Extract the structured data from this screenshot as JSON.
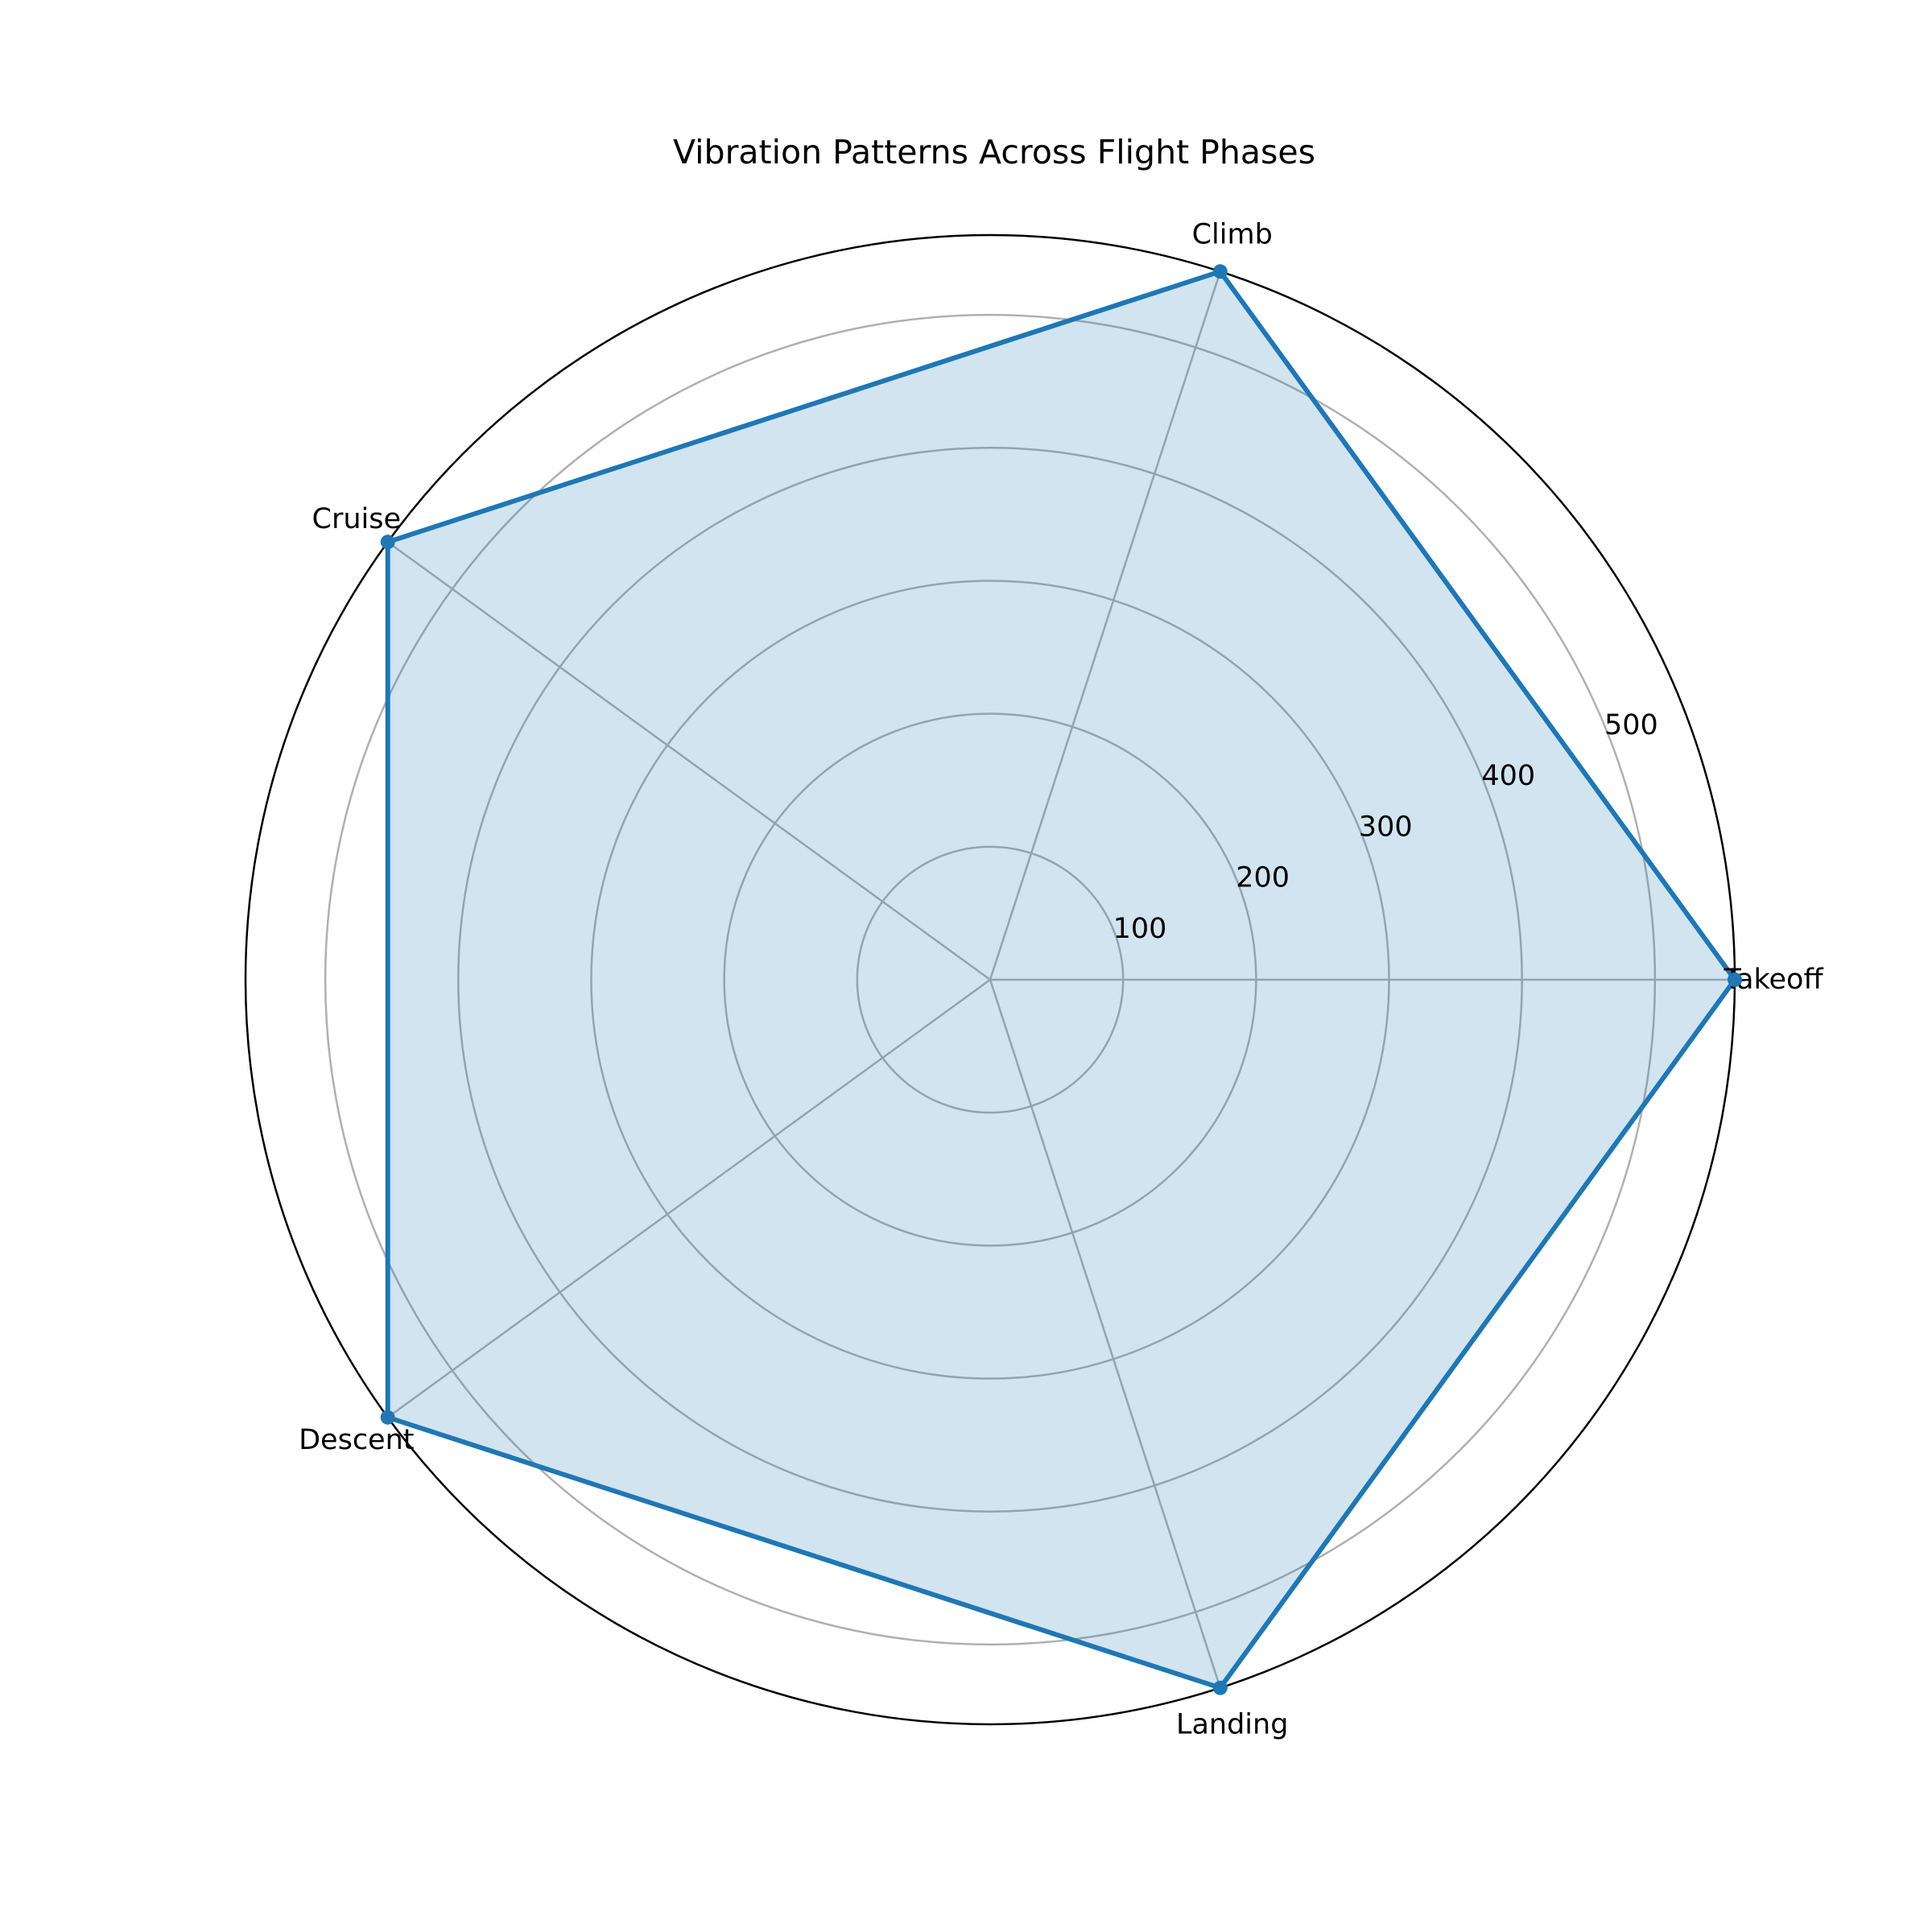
{
  "chart_data": {
    "type": "radar",
    "title": "Vibration Patterns Across Flight Phases",
    "categories": [
      "Takeoff",
      "Climb",
      "Cruise",
      "Descent",
      "Landing"
    ],
    "series": [
      {
        "values": [
          560,
          560,
          560,
          560,
          560
        ],
        "color": "#1f77b4",
        "fill_color": "#1f77b4",
        "fill_opacity": 0.2
      }
    ],
    "rticks": [
      100,
      200,
      300,
      400,
      500
    ],
    "rlim": [
      0,
      560
    ],
    "grid": true,
    "colors": {
      "grid": "#b0b0b0",
      "outer_ring": "#000000",
      "line": "#1f77b4"
    }
  }
}
